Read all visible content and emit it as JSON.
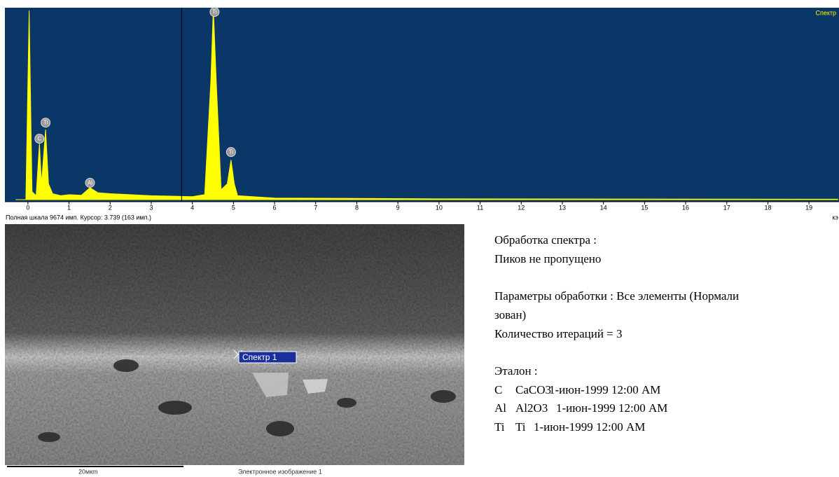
{
  "chart_data": {
    "type": "area",
    "legend_position": "top-right",
    "x": [
      -0.3,
      -0.05,
      0.03,
      0.1,
      0.2,
      0.28,
      0.33,
      0.43,
      0.5,
      0.6,
      0.8,
      1.0,
      1.3,
      1.51,
      1.7,
      2.0,
      3.0,
      4.0,
      4.3,
      4.45,
      4.51,
      4.58,
      4.7,
      4.85,
      4.94,
      5.02,
      5.1,
      6,
      10,
      19.7
    ],
    "series": [
      {
        "name": "Спектр",
        "color": "#ffff00",
        "values": [
          0,
          0,
          9530,
          400,
          200,
          2820,
          800,
          3530,
          800,
          300,
          200,
          250,
          220,
          600,
          350,
          300,
          200,
          150,
          250,
          6000,
          9674,
          6000,
          500,
          800,
          2000,
          800,
          200,
          80,
          40,
          20
        ]
      }
    ],
    "xlim": [
      -0.56,
      19.73
    ],
    "ylim": [
      0,
      9674
    ],
    "xticks": [
      0,
      1,
      2,
      3,
      4,
      5,
      6,
      7,
      8,
      9,
      10,
      11,
      12,
      13,
      14,
      15,
      16,
      17,
      18,
      19
    ],
    "xlabel": "кэ",
    "cursor": 3.739,
    "footer": "Полная шкала 9674 имп. Курсор: 3.739  (163 имп.)",
    "peak_labels": [
      {
        "label": "C",
        "x": 0.28,
        "y": 3070
      },
      {
        "label": "Ti",
        "x": 0.43,
        "y": 3880
      },
      {
        "label": "Al",
        "x": 1.51,
        "y": 850
      },
      {
        "label": "Ti",
        "x": 4.54,
        "y": 9460
      },
      {
        "label": "Ti",
        "x": 4.94,
        "y": 2400
      }
    ]
  },
  "image": {
    "marker": "Спектр 1",
    "scale": "20мкm",
    "caption": "Электронное изображение 1"
  },
  "report": {
    "lines1": [
      "Обработка спектра :",
      "Пиков не пропущено"
    ],
    "lines2": [
      "Параметры обработки : Все элементы (Нормали",
      "зован)",
      "Количество итераций = 3"
    ],
    "standards_title": "Эталон :",
    "standards": [
      [
        "C",
        "CaCO3",
        "1-июн-1999 12:00 AM"
      ],
      [
        "Al",
        "Al2O3",
        "1-июн-1999 12:00 AM"
      ],
      [
        "Ti",
        "Ti",
        "1-июн-1999 12:00 AM"
      ]
    ]
  }
}
